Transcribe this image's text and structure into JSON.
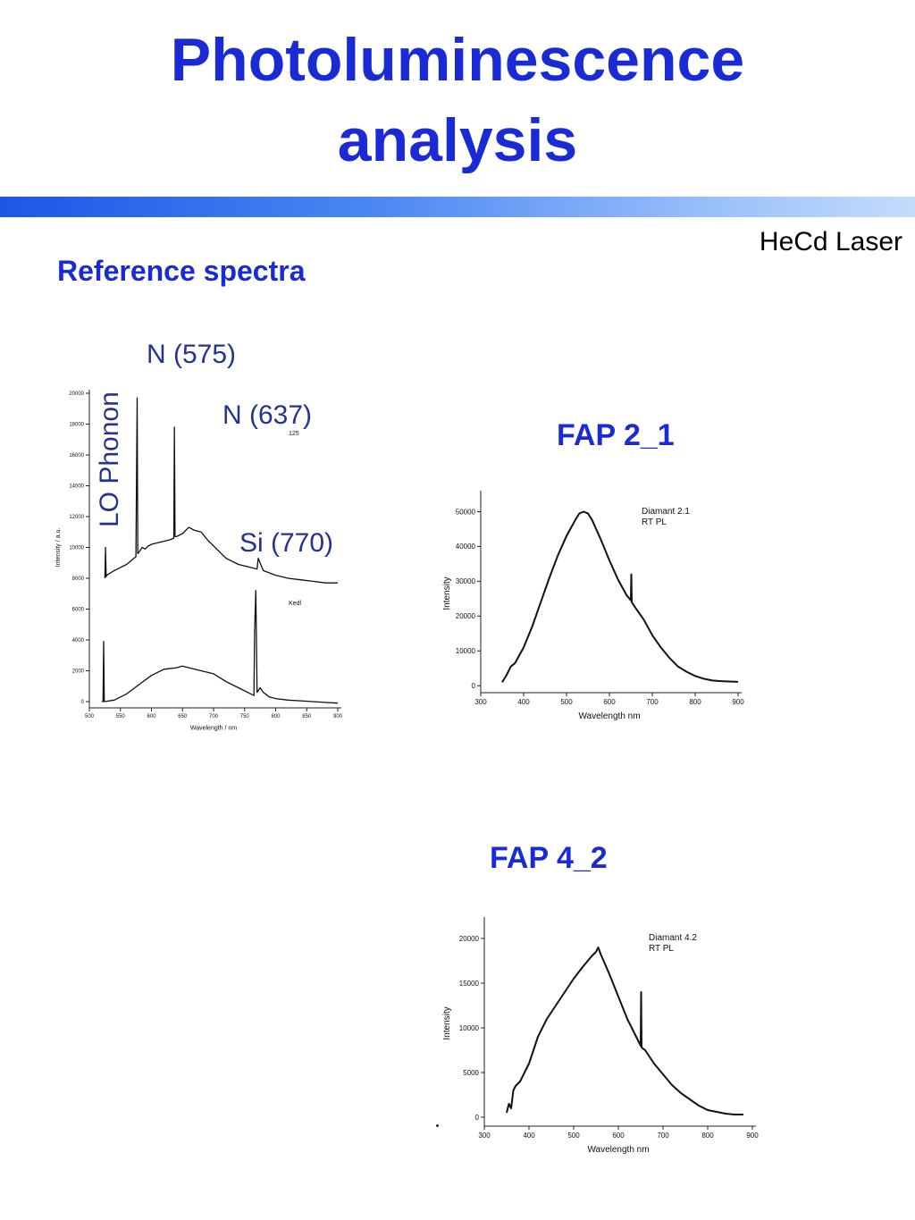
{
  "page": {
    "title_line1": "Photoluminescence",
    "title_line2": "analysis",
    "laser_label": "HeCd Laser",
    "subheading": "Reference spectra"
  },
  "annotations": {
    "n575": "N (575)",
    "n637": "N (637)",
    "lo_phonon": "LO Phonon",
    "si770": "Si (770)"
  },
  "colors": {
    "title": "#1a2bd6",
    "annotation": "#24338f",
    "band_start": "#1c56e6",
    "band_end": "#c4dcfc"
  },
  "chart_data": [
    {
      "id": "reference",
      "type": "line",
      "xlabel": "Wavelength / nm",
      "ylabel": "Intensity / a.u.",
      "xlim": [
        500,
        900
      ],
      "ylim": [
        0,
        20000
      ],
      "yticks": [
        0,
        2000,
        4000,
        6000,
        8000,
        10000,
        12000,
        14000,
        16000,
        18000,
        20000
      ],
      "xticks": [
        500,
        550,
        600,
        650,
        700,
        750,
        800,
        850,
        900
      ],
      "inner_labels": [
        "125",
        "Kedl"
      ],
      "series": [
        {
          "x": [
            525,
            526,
            527,
            528,
            540,
            560,
            575,
            577,
            578,
            580,
            585,
            590,
            595,
            600,
            610,
            620,
            630,
            636,
            637,
            638,
            640,
            650,
            660,
            670,
            680,
            690,
            700,
            720,
            740,
            760,
            770,
            772,
            780,
            800,
            820,
            840,
            860,
            880,
            900
          ],
          "y": [
            8000,
            10000,
            8100,
            8200,
            8500,
            8900,
            9400,
            19700,
            9600,
            9700,
            10000,
            9900,
            10100,
            10200,
            10300,
            10400,
            10500,
            10600,
            17800,
            10700,
            10700,
            10900,
            11300,
            11100,
            11000,
            10500,
            10100,
            9300,
            8900,
            8700,
            8600,
            9300,
            8500,
            8200,
            8000,
            7900,
            7800,
            7700,
            7700
          ]
        },
        {
          "x": [
            520,
            522,
            523,
            524,
            540,
            560,
            580,
            600,
            620,
            640,
            650,
            660,
            670,
            680,
            700,
            720,
            740,
            760,
            765,
            766,
            768,
            770,
            775,
            780,
            790,
            800,
            820,
            840,
            860,
            880,
            900
          ],
          "y": [
            0,
            0,
            3900,
            0,
            100,
            500,
            1100,
            1700,
            2100,
            2200,
            2300,
            2200,
            2100,
            2000,
            1800,
            1300,
            900,
            500,
            400,
            4500,
            7200,
            600,
            900,
            600,
            300,
            200,
            100,
            50,
            0,
            -50,
            -100
          ]
        }
      ]
    },
    {
      "id": "fap2_1",
      "label": "FAP 2_1",
      "type": "line",
      "xlabel": "Wavelength nm",
      "ylabel": "Intensity",
      "xlim": [
        300,
        900
      ],
      "ylim": [
        -2000,
        55000
      ],
      "yticks": [
        0,
        10000,
        20000,
        30000,
        40000,
        50000
      ],
      "xticks": [
        300,
        400,
        500,
        600,
        700,
        800,
        900
      ],
      "legend": [
        "Diamant 2.1",
        "RT PL"
      ],
      "series": [
        {
          "x": [
            350,
            360,
            370,
            380,
            400,
            420,
            440,
            460,
            480,
            500,
            520,
            530,
            540,
            550,
            560,
            580,
            600,
            620,
            640,
            650,
            651,
            652,
            660,
            680,
            700,
            720,
            740,
            760,
            780,
            800,
            820,
            840,
            860,
            880,
            900
          ],
          "y": [
            1000,
            3000,
            5500,
            6500,
            11000,
            17000,
            24000,
            31000,
            37500,
            43000,
            47500,
            49500,
            50000,
            49500,
            47500,
            42000,
            36000,
            30500,
            26000,
            24500,
            32000,
            24000,
            22500,
            19000,
            14500,
            11000,
            8000,
            5500,
            4000,
            2800,
            2000,
            1500,
            1300,
            1200,
            1100
          ]
        }
      ]
    },
    {
      "id": "fap4_2",
      "label": "FAP 4_2",
      "type": "line",
      "xlabel": "Wavelength nm",
      "ylabel": "Intensity",
      "xlim": [
        300,
        900
      ],
      "ylim": [
        -1000,
        22000
      ],
      "yticks": [
        0,
        5000,
        10000,
        15000,
        20000
      ],
      "xticks": [
        300,
        400,
        500,
        600,
        700,
        800,
        900
      ],
      "legend": [
        "Diamant 4.2",
        "RT PL"
      ],
      "series": [
        {
          "x": [
            350,
            355,
            360,
            365,
            370,
            380,
            390,
            400,
            420,
            440,
            460,
            480,
            500,
            520,
            540,
            550,
            555,
            560,
            580,
            600,
            620,
            640,
            650,
            651,
            652,
            660,
            680,
            700,
            720,
            740,
            760,
            780,
            800,
            820,
            840,
            860,
            880
          ],
          "y": [
            500,
            1500,
            1000,
            3000,
            3500,
            4000,
            5000,
            6000,
            9000,
            11000,
            12500,
            14000,
            15500,
            16800,
            18000,
            18500,
            19000,
            18300,
            16000,
            13500,
            11000,
            9000,
            8000,
            14000,
            7800,
            7500,
            6000,
            4800,
            3600,
            2700,
            2000,
            1300,
            800,
            600,
            400,
            300,
            300
          ]
        }
      ]
    }
  ]
}
